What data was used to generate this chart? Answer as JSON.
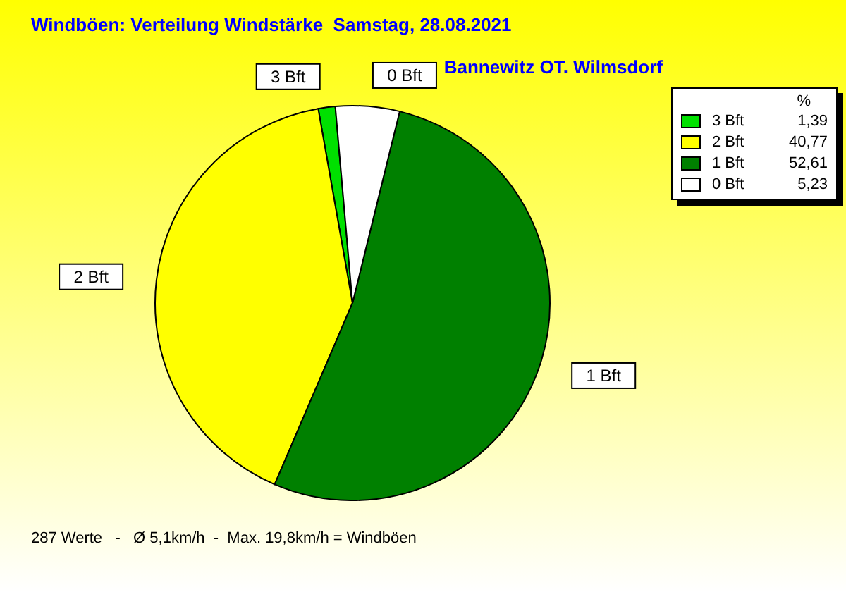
{
  "chart_data": {
    "type": "pie",
    "title": "Windböen: Verteilung Windstärke  Samstag, 28.08.2021",
    "subtitle": "Bannewitz OT. Wilmsdorf",
    "categories": [
      "3 Bft",
      "2 Bft",
      "1 Bft",
      "0 Bft"
    ],
    "values": [
      1.39,
      40.77,
      52.61,
      5.23
    ],
    "value_labels": [
      "1,39",
      "40,77",
      "52,61",
      "5,23"
    ],
    "colors": [
      "#00e000",
      "#ffff00",
      "#008000",
      "#ffffff"
    ],
    "legend": "top right",
    "legend_title": "%",
    "annotations": [
      "287 Werte   -   Ø 5,1km/h  -  Max. 19,8km/h = Windböen"
    ]
  }
}
